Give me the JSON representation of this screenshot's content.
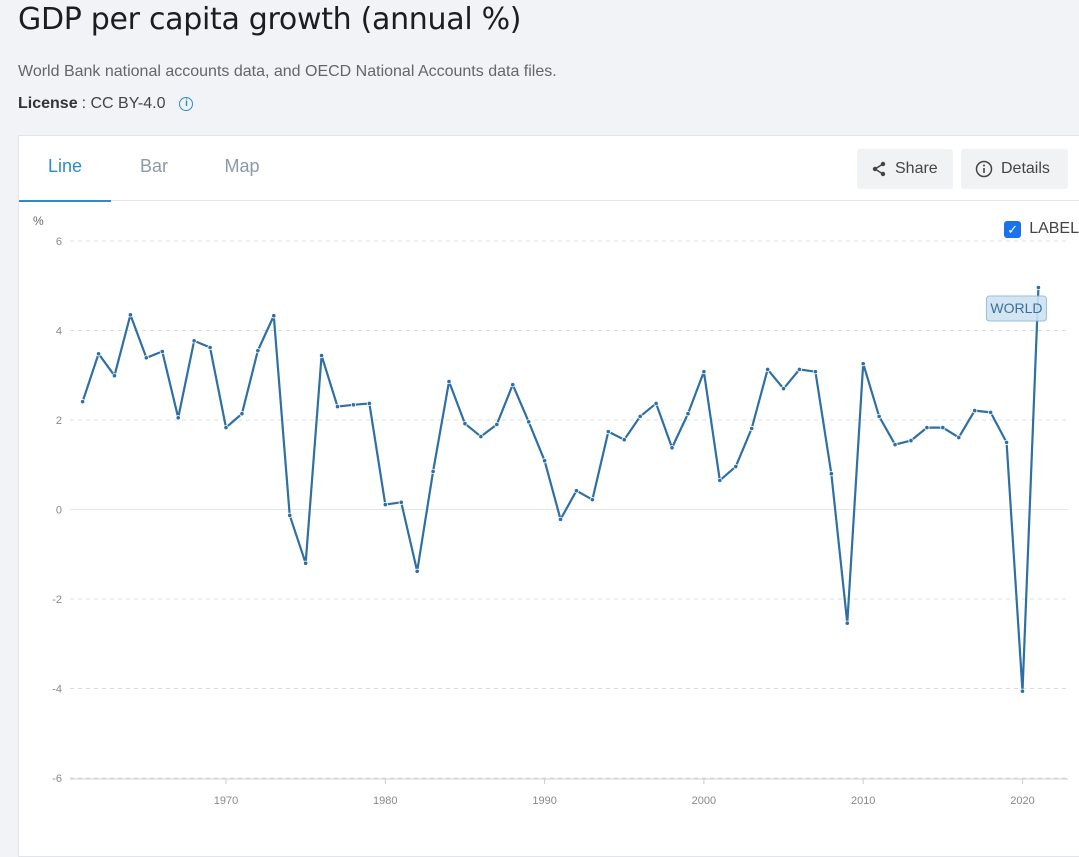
{
  "header": {
    "title": "GDP per capita growth (annual %)",
    "source": "World Bank national accounts data, and OECD National Accounts data files.",
    "license_label": "License",
    "license_value": ": CC BY-4.0"
  },
  "tabs": [
    {
      "label": "Line"
    },
    {
      "label": "Bar"
    },
    {
      "label": "Map"
    }
  ],
  "actions": {
    "share": "Share",
    "details": "Details"
  },
  "label_toggle": {
    "label": "LABEL",
    "checked": true
  },
  "colors": {
    "accent": "#2b8ccb",
    "line": "#2e6fa4"
  },
  "chart_data": {
    "type": "line",
    "title": "GDP per capita growth (annual %)",
    "ylabel": "%",
    "xlabel": "",
    "ylim": [
      -6,
      6
    ],
    "yticks": [
      6,
      4,
      2,
      0,
      -2,
      -4,
      -6
    ],
    "xticks": [
      1970,
      1980,
      1990,
      2000,
      2010,
      2020
    ],
    "grid": true,
    "series": [
      {
        "name": "WORLD",
        "x": [
          1961,
          1962,
          1963,
          1964,
          1965,
          1966,
          1967,
          1968,
          1969,
          1970,
          1971,
          1972,
          1973,
          1974,
          1975,
          1976,
          1977,
          1978,
          1979,
          1980,
          1981,
          1982,
          1983,
          1984,
          1985,
          1986,
          1987,
          1988,
          1989,
          1990,
          1991,
          1992,
          1993,
          1994,
          1995,
          1996,
          1997,
          1998,
          1999,
          2000,
          2001,
          2002,
          2003,
          2004,
          2005,
          2006,
          2007,
          2008,
          2009,
          2010,
          2011,
          2012,
          2013,
          2014,
          2015,
          2016,
          2017,
          2018,
          2019,
          2020,
          2021
        ],
        "values": [
          2.41,
          3.48,
          2.99,
          4.35,
          3.39,
          3.53,
          2.05,
          3.77,
          3.62,
          1.83,
          2.14,
          3.55,
          4.33,
          -0.13,
          -1.2,
          3.44,
          2.3,
          2.34,
          2.37,
          0.11,
          0.16,
          -1.38,
          0.85,
          2.86,
          1.92,
          1.63,
          1.9,
          2.79,
          1.96,
          1.09,
          -0.22,
          0.42,
          0.22,
          1.74,
          1.56,
          2.08,
          2.37,
          1.38,
          2.14,
          3.08,
          0.65,
          0.96,
          1.81,
          3.13,
          2.7,
          3.13,
          3.08,
          0.8,
          -2.54,
          3.26,
          2.08,
          1.45,
          1.54,
          1.83,
          1.83,
          1.61,
          2.21,
          2.17,
          1.5,
          -4.06,
          4.96
        ]
      }
    ]
  }
}
